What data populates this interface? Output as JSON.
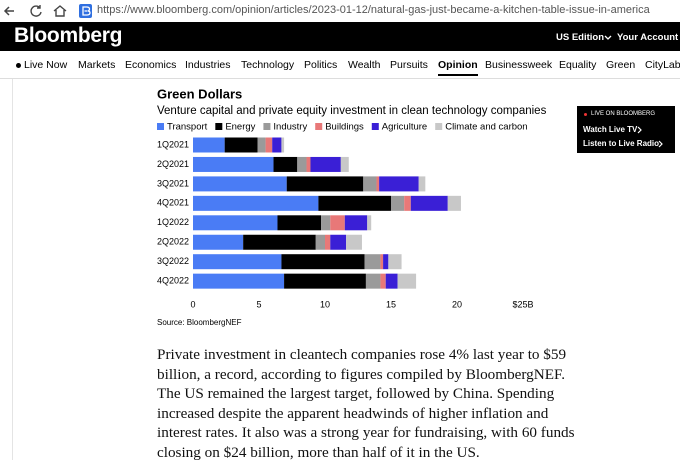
{
  "browser": {
    "url": "https://www.bloomberg.com/opinion/articles/2023-01-12/natural-gas-just-became-a-kitchen-table-issue-in-america"
  },
  "header": {
    "logo": "Bloomberg",
    "edition": "US Edition",
    "account": "Your Account"
  },
  "nav": {
    "items": [
      "Live Now",
      "Markets",
      "Economics",
      "Industries",
      "Technology",
      "Politics",
      "Wealth",
      "Pursuits",
      "Opinion",
      "Businessweek",
      "Equality",
      "Green",
      "CityLab"
    ],
    "active": "Opinion"
  },
  "live_box": {
    "label": "LIVE ON BLOOMBERG",
    "links": [
      "Watch Live TV",
      "Listen to Live Radio"
    ]
  },
  "chart_data": {
    "type": "bar",
    "orientation": "horizontal",
    "stacked": true,
    "title": "Green Dollars",
    "subtitle": "Venture capital and private equity investment in clean technology companies",
    "source": "Source: BloombergNEF",
    "categories": [
      "1Q2021",
      "2Q2021",
      "3Q2021",
      "4Q2021",
      "1Q2022",
      "2Q2022",
      "3Q2022",
      "4Q2022"
    ],
    "series": [
      {
        "name": "Transport",
        "color": "#4a7cf5",
        "values": [
          2.4,
          6.1,
          7.1,
          9.5,
          6.4,
          3.8,
          6.7,
          6.9
        ]
      },
      {
        "name": "Energy",
        "color": "#000000",
        "values": [
          2.5,
          1.8,
          5.8,
          5.5,
          3.3,
          5.5,
          6.3,
          6.2
        ]
      },
      {
        "name": "Industry",
        "color": "#9a9a9a",
        "values": [
          0.6,
          0.7,
          1.0,
          1.0,
          0.7,
          0.7,
          1.2,
          1.1
        ]
      },
      {
        "name": "Buildings",
        "color": "#e87878",
        "values": [
          0.5,
          0.3,
          0.2,
          0.5,
          1.1,
          0.4,
          0.2,
          0.4
        ]
      },
      {
        "name": "Agriculture",
        "color": "#3a1fd6",
        "values": [
          0.7,
          2.3,
          3.0,
          2.8,
          1.7,
          1.2,
          0.4,
          0.9
        ]
      },
      {
        "name": "Climate and carbon",
        "color": "#c8c8c8",
        "values": [
          0.2,
          0.6,
          0.5,
          1.0,
          0.3,
          1.2,
          1.0,
          1.4
        ]
      }
    ],
    "xlim": [
      0,
      25
    ],
    "xticks": [
      0,
      5,
      10,
      15,
      20,
      {
        "value": 25,
        "label": "$25B"
      }
    ],
    "grid": false
  },
  "article": {
    "lines": [
      "Private investment in cleantech companies rose 4% last year to $59",
      "billion, a record, according to figures compiled by BloombergNEF.",
      "The US remained the largest target, followed by China. Spending",
      "increased despite the apparent headwinds of higher inflation and",
      "interest rates. It also was a strong year for fundraising, with 60 funds",
      "closing on $24 billion, more than half of it in the US."
    ]
  }
}
